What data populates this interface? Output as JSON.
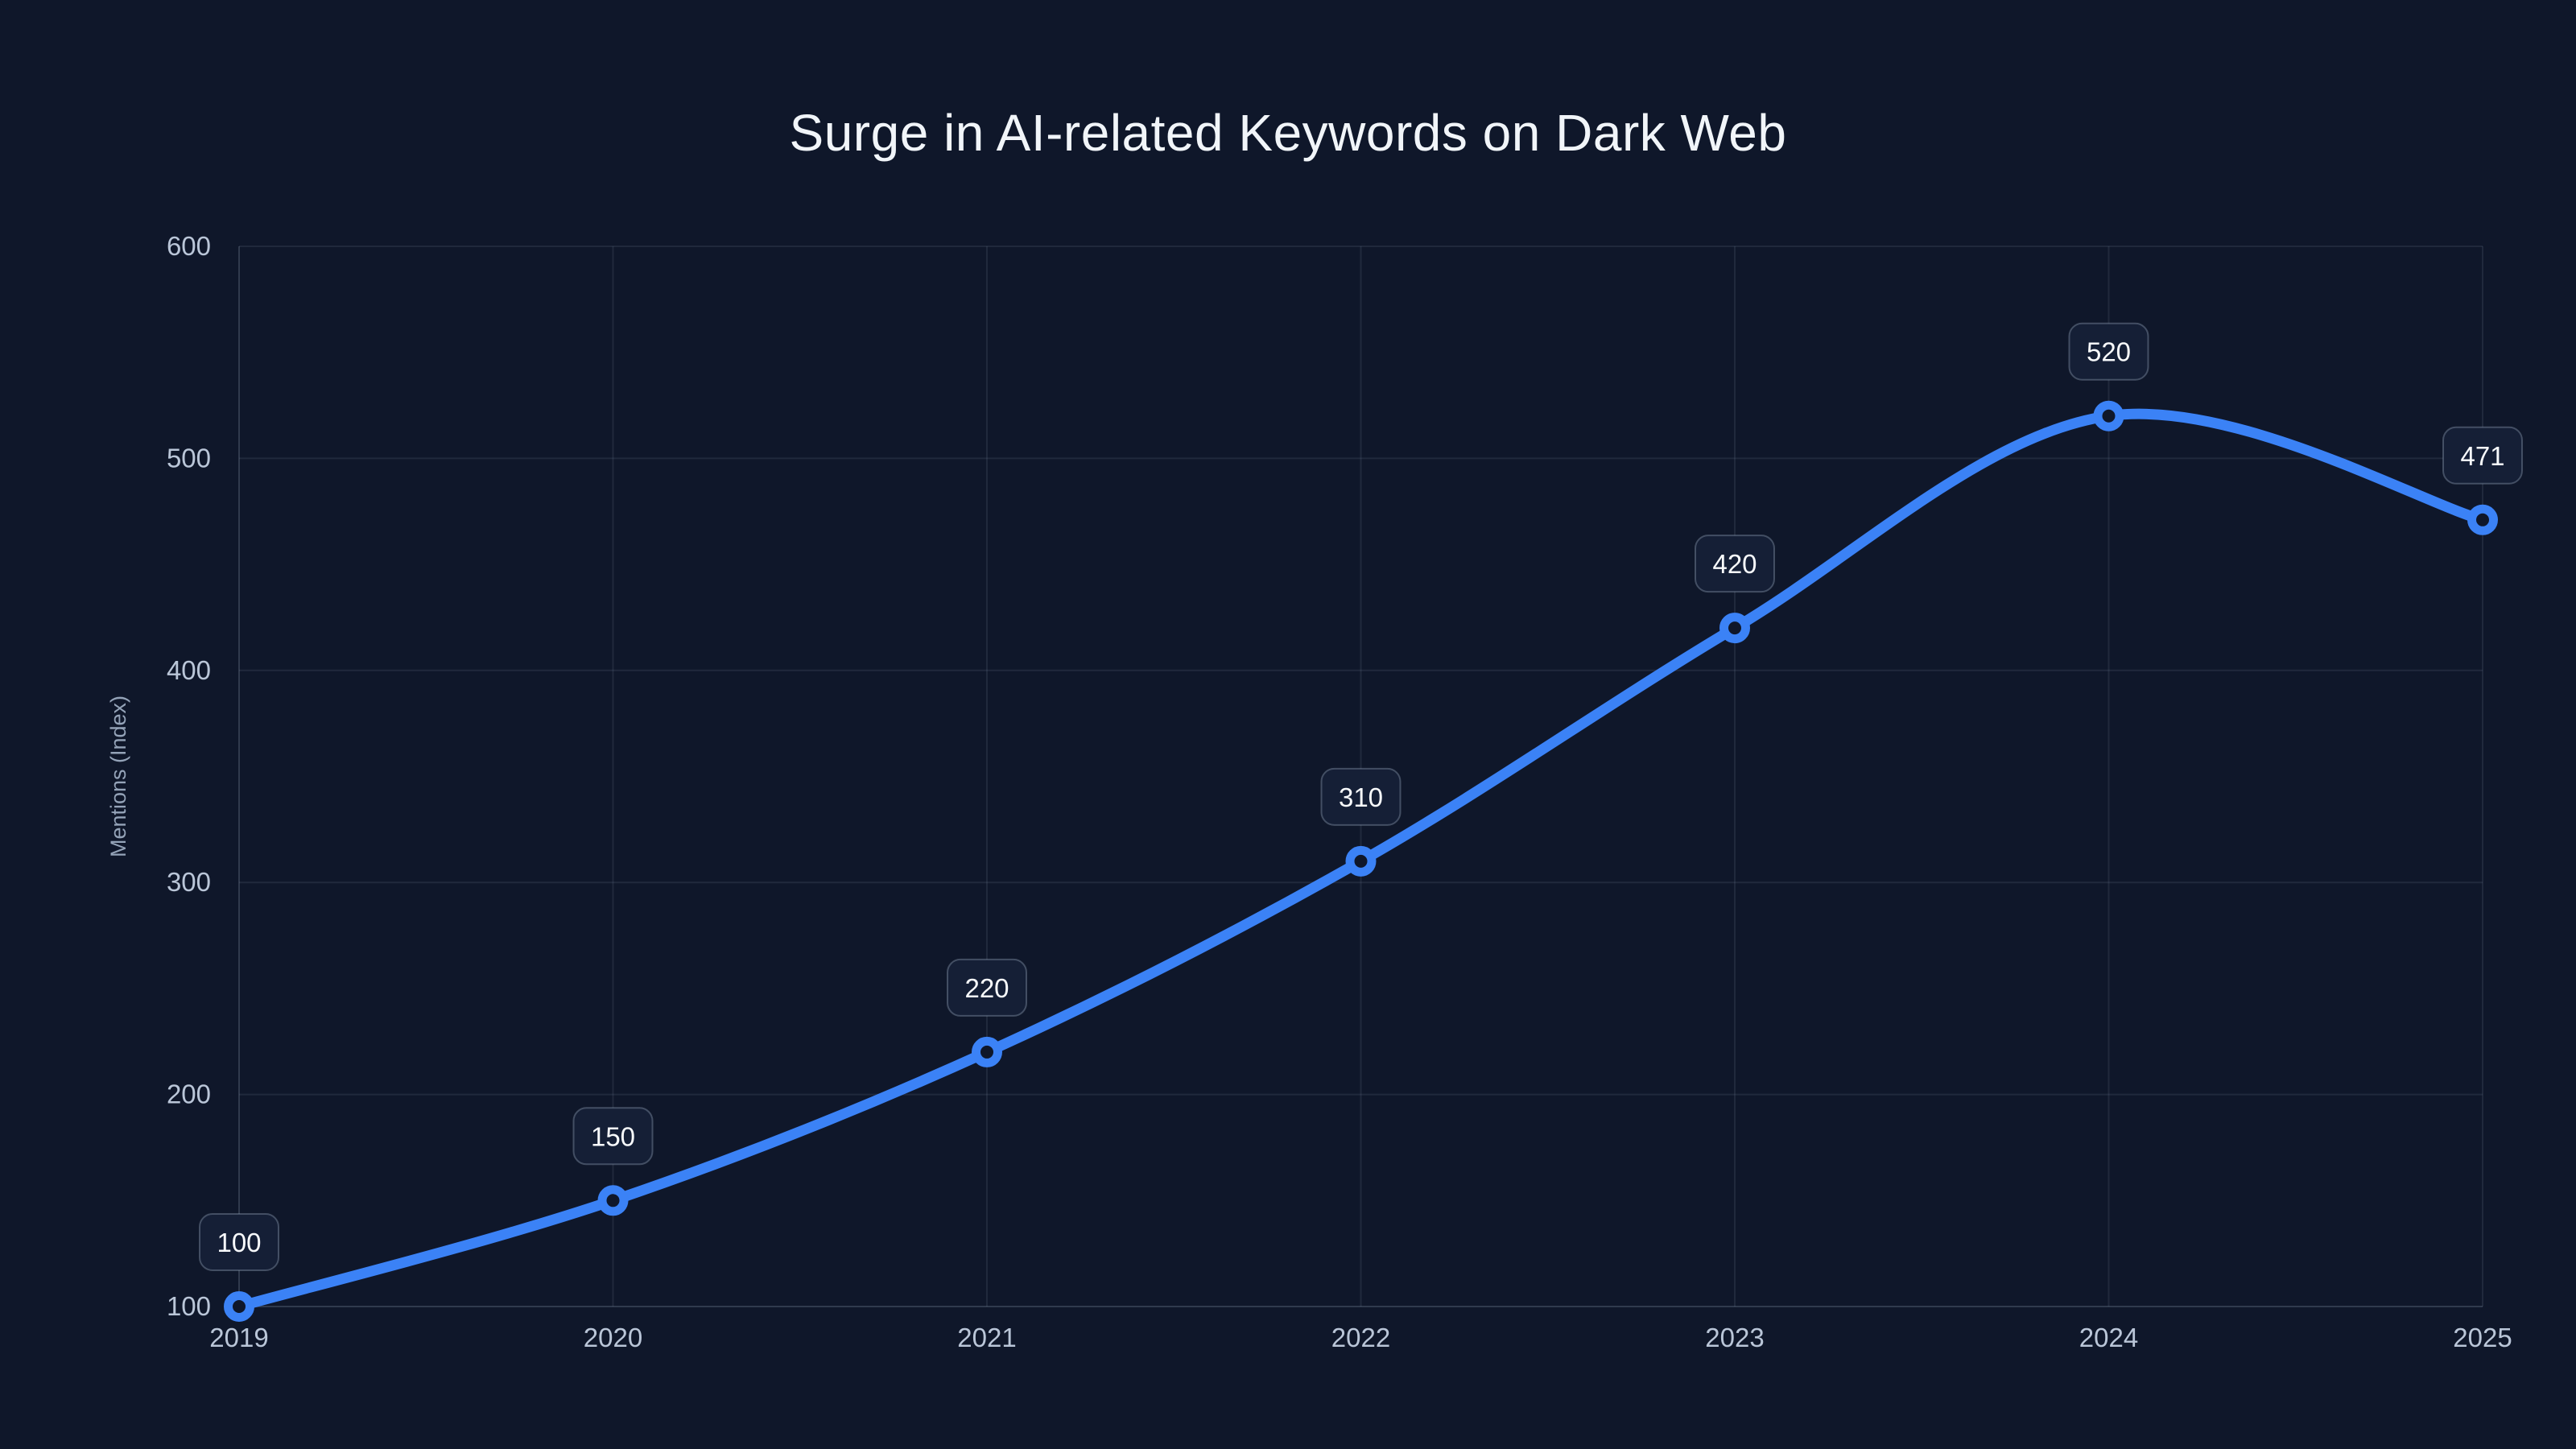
{
  "title": "Surge in AI-related Keywords on Dark Web",
  "chart_data": {
    "type": "line",
    "title": "Surge in AI-related Keywords on Dark Web",
    "x": [
      "2019",
      "2020",
      "2021",
      "2022",
      "2023",
      "2024",
      "2025"
    ],
    "series": [
      {
        "name": "Mentions (Index)",
        "values": [
          100,
          150,
          220,
          310,
          420,
          520,
          471
        ]
      }
    ],
    "point_labels": [
      "100",
      "150",
      "220",
      "310",
      "420",
      "520",
      "471"
    ],
    "xlabel": "",
    "ylabel": "Mentions (Index)",
    "ylim": [
      100,
      600
    ],
    "yticks": [
      100,
      200,
      300,
      400,
      500,
      600
    ],
    "grid": true,
    "legend": false,
    "smooth": true,
    "marker_style": "open-circle"
  },
  "colors": {
    "background": "#0f172a",
    "accent_line": "#3b82f6",
    "grid": "rgba(148,163,184,0.13)",
    "axis_line": "rgba(148,163,184,0.25)",
    "tick_text": "#bac6d8",
    "axis_title_text": "#94a3b8",
    "label_box_bg": "#151f36",
    "label_box_border": "rgba(148,163,184,0.38)",
    "label_text": "#f8fafc",
    "title_text": "#f1f5f9"
  }
}
